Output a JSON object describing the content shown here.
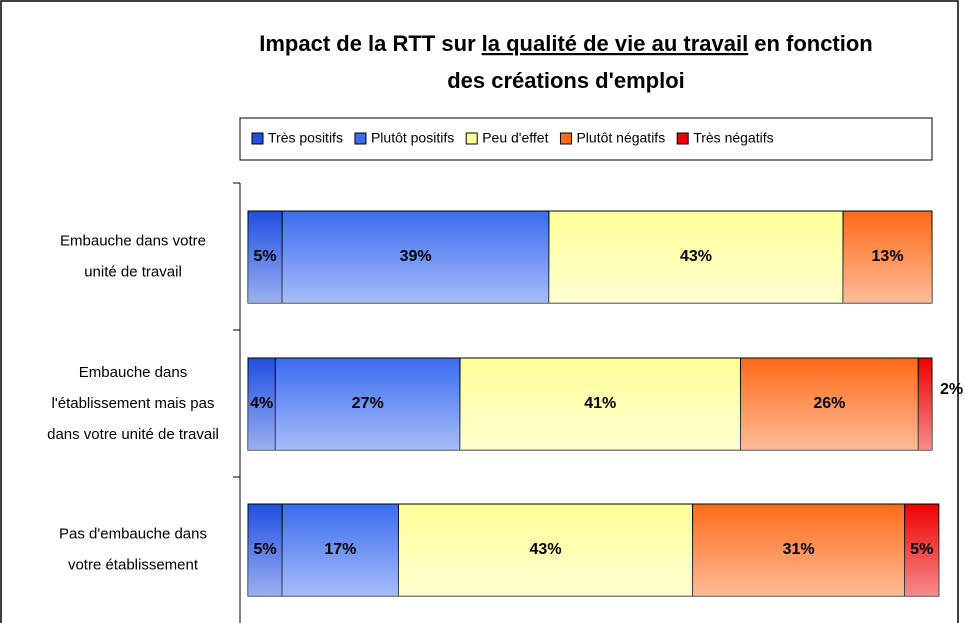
{
  "chart_data": {
    "type": "stacked_barh",
    "title": [
      "Impact de la RTT sur",
      "la qualité de vie au travail",
      "en fonction",
      "des créations d'emploi"
    ],
    "categories": [
      [
        "Embauche dans votre",
        "unité de travail"
      ],
      [
        "Embauche dans",
        "l'établissement mais pas",
        "dans votre unité de travail"
      ],
      [
        "Pas d'embauche dans",
        "votre établissement"
      ]
    ],
    "xlim": [
      0,
      100
    ],
    "series": [
      {
        "name": "Très positifs",
        "color": "#1f4fe0",
        "values": [
          5,
          4,
          5
        ],
        "value_labels": [
          "5%",
          "4%",
          "5%"
        ]
      },
      {
        "name": "Plutôt positifs",
        "color": "#3a6cf0",
        "values": [
          39,
          27,
          17
        ],
        "value_labels": [
          "39%",
          "27%",
          "17%"
        ]
      },
      {
        "name": "Peu d'effet",
        "color": "#ffff99",
        "values": [
          43,
          41,
          43
        ],
        "value_labels": [
          "43%",
          "41%",
          "43%"
        ]
      },
      {
        "name": "Plutôt négatifs",
        "color": "#ff6a1a",
        "values": [
          13,
          26,
          31
        ],
        "value_labels": [
          "13%",
          "26%",
          "31%"
        ]
      },
      {
        "name": "Très négatifs",
        "color": "#ee0000",
        "values": [
          null,
          2,
          5
        ],
        "value_labels": [
          null,
          "2%",
          "5%"
        ]
      }
    ]
  }
}
